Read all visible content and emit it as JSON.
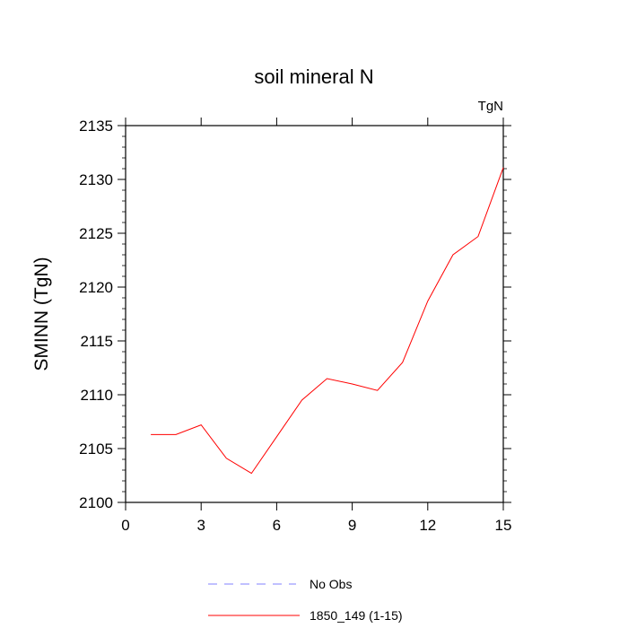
{
  "chart_data": {
    "type": "line",
    "title": "soil mineral N",
    "units_label": "TgN",
    "ylabel": "SMINN  (TgN)",
    "xlabel": "",
    "xlim": [
      0,
      15
    ],
    "ylim": [
      2100,
      2135
    ],
    "xticks": [
      0,
      3,
      6,
      9,
      12,
      15
    ],
    "yticks": [
      2100,
      2105,
      2110,
      2115,
      2120,
      2125,
      2130,
      2135
    ],
    "grid": false,
    "legend_position": "bottom",
    "series": [
      {
        "name": "1850_149 (1-15)",
        "color": "#ff0000",
        "style": "solid",
        "x": [
          1,
          2,
          3,
          4,
          5,
          6,
          7,
          8,
          9,
          10,
          11,
          12,
          13,
          14,
          15
        ],
        "y": [
          2106.3,
          2106.3,
          2107.2,
          2104.1,
          2102.7,
          2106.1,
          2109.5,
          2111.5,
          2111.0,
          2110.4,
          2113.0,
          2118.7,
          2123.0,
          2124.7,
          2131.1
        ]
      }
    ],
    "legend": [
      {
        "label": "No Obs",
        "color": "#8080ff",
        "style": "dashed"
      },
      {
        "label": "1850_149 (1-15)",
        "color": "#ff0000",
        "style": "solid"
      }
    ]
  }
}
